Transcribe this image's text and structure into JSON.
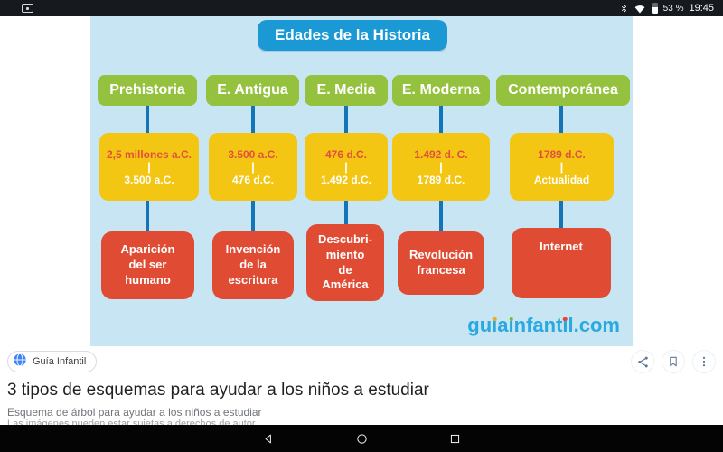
{
  "status_bar": {
    "battery_label": "53 %",
    "battery_percent": 53,
    "time": "19:45",
    "icons": [
      "bluetooth-icon",
      "wifi-icon",
      "battery-icon"
    ]
  },
  "diagram": {
    "title": "Edades de la Historia",
    "columns": [
      {
        "age": "Prehistoria",
        "period_start": "2,5 millones a.C.",
        "period_sep": "|",
        "period_end": "3.500 a.C.",
        "event": "Aparición\ndel ser\nhumano"
      },
      {
        "age": "E. Antigua",
        "period_start": "3.500 a.C.",
        "period_sep": "|",
        "period_end": "476 d.C.",
        "event": "Invención\nde la\nescritura"
      },
      {
        "age": "E. Media",
        "period_start": "476 d.C.",
        "period_sep": "|",
        "period_end": "1.492 d.C.",
        "event": "Descubri-\nmiento\nde\nAmérica"
      },
      {
        "age": "E. Moderna",
        "period_start": "1.492 d. C.",
        "period_sep": "|",
        "period_end": "1789 d.C.",
        "event": "Revolución\nfrancesa"
      },
      {
        "age": "Contemporánea",
        "period_start": "1789 d.C.",
        "period_sep": "|",
        "period_end": "Actualidad",
        "event": "Internet"
      }
    ],
    "brand": {
      "color": "#2AA9E0",
      "text": "guiainfantil.com",
      "segments": [
        {
          "text": "gu"
        },
        {
          "text": "i",
          "dot": "#EDAB1E"
        },
        {
          "text": "a"
        },
        {
          "text": "i",
          "dot": "#7CB82F"
        },
        {
          "text": "nfant"
        },
        {
          "text": "i",
          "dot": "#E8432D"
        },
        {
          "text": "l.com"
        }
      ]
    },
    "colors": {
      "bg": "#C8E5F4",
      "title": "#1B99D5",
      "age": "#95C23E",
      "period": "#F4C614",
      "event": "#E04B33",
      "connector": "#1474B8",
      "period_start_text": "#E2503A"
    }
  },
  "source": {
    "label": "Guía Infantil"
  },
  "page": {
    "title": "3 tipos de esquemas para ayudar a los niños a estudiar",
    "subtitle": "Esquema de árbol para ayudar a los niños a estudiar",
    "copyright": "Las imágenes pueden estar sujetas a derechos de autor"
  }
}
